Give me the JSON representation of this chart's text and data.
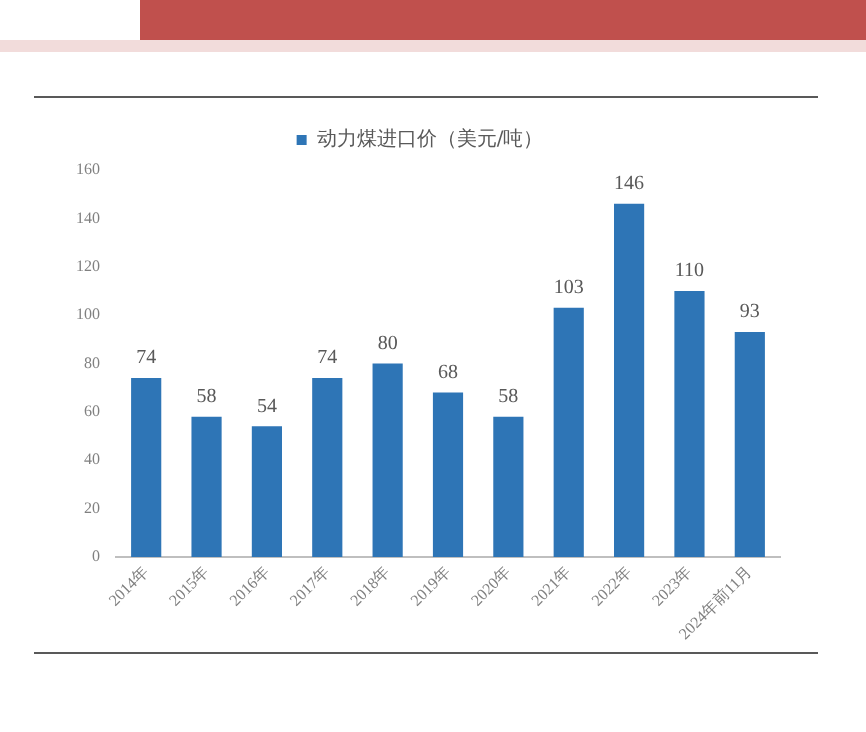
{
  "chart_data": {
    "type": "bar",
    "categories": [
      "2014年",
      "2015年",
      "2016年",
      "2017年",
      "2018年",
      "2019年",
      "2020年",
      "2021年",
      "2022年",
      "2023年",
      "2024年前11月"
    ],
    "series": [
      {
        "name": "动力煤进口价（美元/吨）",
        "color": "#2e75b6",
        "values": [
          74,
          58,
          54,
          74,
          80,
          68,
          58,
          103,
          146,
          110,
          93
        ]
      }
    ],
    "ylim": [
      0,
      160
    ],
    "yticks": [
      0,
      20,
      40,
      60,
      80,
      100,
      120,
      140,
      160
    ],
    "grid": false,
    "legend": "top",
    "data_labels": true
  }
}
